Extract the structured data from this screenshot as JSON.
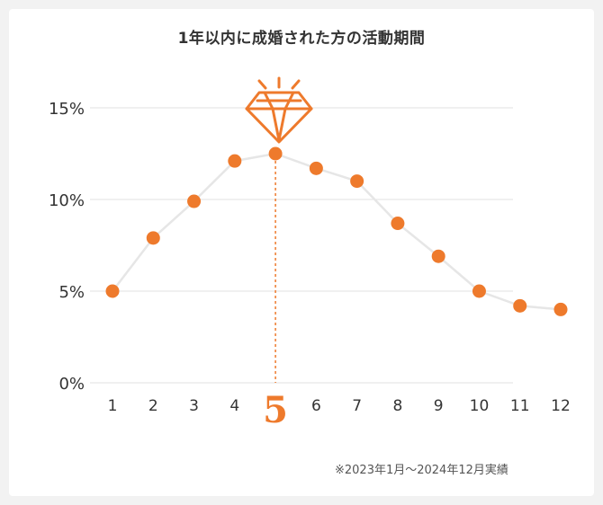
{
  "chart_data": {
    "type": "line",
    "title": "1年以内に成婚された方の活動期間",
    "x": [
      "1",
      "2",
      "3",
      "4",
      "5",
      "6",
      "7",
      "8",
      "9",
      "10",
      "11",
      "12"
    ],
    "series": [
      {
        "values": [
          5.0,
          7.9,
          9.9,
          12.1,
          12.5,
          11.7,
          11.0,
          8.7,
          6.9,
          5.0,
          4.2,
          4.0
        ]
      }
    ],
    "y_ticks": [
      "0%",
      "5%",
      "10%",
      "15%"
    ],
    "ylim": [
      0,
      15
    ],
    "highlight_x": "5",
    "grid": true,
    "colors": {
      "point": "#ee7a2c",
      "line": "#e6e6e6",
      "grid": "#e2e2e2",
      "highlight": "#ee7a2c"
    },
    "icon": "diamond-icon"
  },
  "footnote": "※2023年1月〜2024年12月実績"
}
